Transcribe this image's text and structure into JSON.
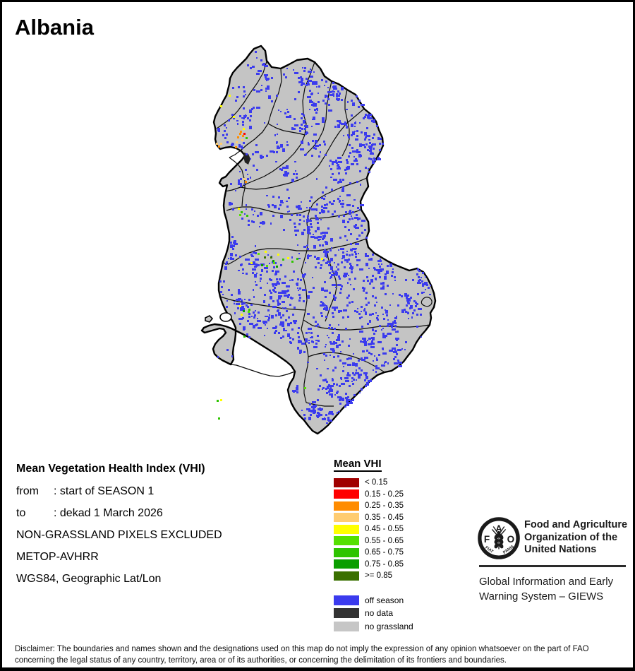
{
  "title": "Albania",
  "info": {
    "heading": "Mean Vegetation Health Index (VHI)",
    "rows": [
      {
        "label": "from",
        "value": ": start of SEASON 1"
      },
      {
        "label": "to",
        "value": ": dekad 1 March 2026"
      }
    ],
    "lines": [
      "NON-GRASSLAND PIXELS EXCLUDED",
      "METOP-AVHRR",
      "WGS84, Geographic Lat/Lon"
    ]
  },
  "legend": {
    "title": "Mean VHI",
    "classes": [
      {
        "label": "< 0.15",
        "color": "#A00000"
      },
      {
        "label": "0.15 - 0.25",
        "color": "#FF0000"
      },
      {
        "label": "0.25 - 0.35",
        "color": "#FF8C00"
      },
      {
        "label": "0.35 - 0.45",
        "color": "#FFCC70"
      },
      {
        "label": "0.45 - 0.55",
        "color": "#FFFF00"
      },
      {
        "label": "0.55 - 0.65",
        "color": "#55E000"
      },
      {
        "label": "0.65 - 0.75",
        "color": "#2EC400"
      },
      {
        "label": "0.75 - 0.85",
        "color": "#0A9E00"
      },
      {
        "label": ">= 0.85",
        "color": "#3A7000"
      }
    ],
    "extras": [
      {
        "label": "off season",
        "color": "#3B3BEE"
      },
      {
        "label": "no data",
        "color": "#333333"
      },
      {
        "label": "no grassland",
        "color": "#C6C6C6"
      }
    ]
  },
  "footer": {
    "fao_logo": {
      "letter_f": "F",
      "letter_a": "A",
      "letter_o": "O",
      "motto_left": "FIAT",
      "motto_right": "PANIS"
    },
    "fao_name_lines": [
      "Food and Agriculture",
      "Organization of the",
      "United Nations"
    ],
    "giews_lines": [
      "Global Information and Early",
      "Warning System – GIEWS"
    ]
  },
  "disclaimer": {
    "lines": [
      "Disclaimer: The boundaries and names shown and the designations used on this map do not imply the expression of any opinion whatsoever on the part of FAO",
      "concerning the legal status of any country, territory, area or of its authorities, or concerning the delimitation of its frontiers and boundaries."
    ]
  },
  "map": {
    "land_color": "#C4C4C4",
    "border_color": "#000000",
    "off_season_color": "#3B3BEE",
    "no_data_color": "#222222",
    "water_color": "#FFFFFF"
  }
}
